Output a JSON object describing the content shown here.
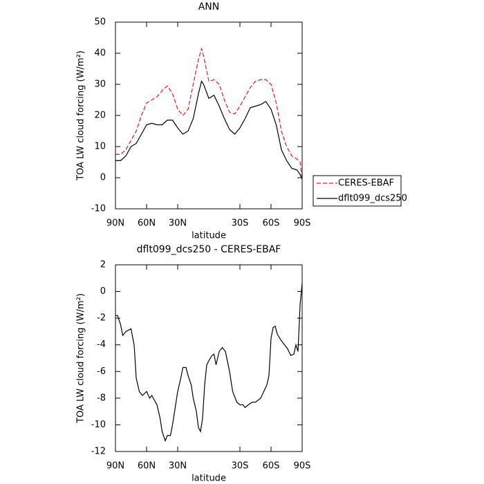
{
  "chart_data": [
    {
      "type": "line",
      "title": "ANN",
      "xlabel": "latitude",
      "ylabel": "TOA LW cloud forcing (W/m²)",
      "x": [
        90,
        85,
        80,
        75,
        70,
        65,
        60,
        55,
        50,
        45,
        40,
        35,
        30,
        25,
        20,
        15,
        10,
        7,
        5,
        0,
        -5,
        -10,
        -15,
        -20,
        -25,
        -30,
        -35,
        -40,
        -45,
        -50,
        -55,
        -60,
        -65,
        -70,
        -75,
        -80,
        -85,
        -88,
        -90
      ],
      "series": [
        {
          "name": "CERES-EBAF",
          "color": "#e41a1c",
          "style": "dashed",
          "values": [
            7.5,
            7.5,
            9,
            12,
            15,
            20,
            24,
            25,
            26,
            28,
            29.5,
            27,
            22,
            20,
            22,
            30,
            38,
            41.5,
            39,
            31,
            31.5,
            30,
            25,
            21,
            20.5,
            23,
            26,
            29,
            31,
            31.5,
            31.5,
            30,
            24,
            15,
            10,
            7,
            6,
            5,
            -0.5
          ]
        },
        {
          "name": "dflt099_dcs250",
          "color": "#000000",
          "style": "solid",
          "values": [
            5.5,
            5.5,
            7,
            10,
            11,
            14,
            17,
            17.5,
            17,
            17,
            18.5,
            18.5,
            16,
            14,
            15,
            19,
            27,
            31,
            30,
            25.5,
            26.5,
            23,
            19,
            15.5,
            14,
            16,
            19,
            22.5,
            23,
            23.5,
            24.5,
            22,
            17,
            9,
            5.5,
            3,
            2.5,
            1,
            -0.5
          ]
        }
      ],
      "xlim": [
        90,
        -90
      ],
      "xticks": [
        {
          "value": 90,
          "label": "90N"
        },
        {
          "value": 60,
          "label": "60N"
        },
        {
          "value": 30,
          "label": "30N"
        },
        {
          "value": -30,
          "label": "30S"
        },
        {
          "value": -60,
          "label": "60S"
        },
        {
          "value": -90,
          "label": "90S"
        }
      ],
      "ylim": [
        -10,
        50
      ],
      "yticks": [
        -10,
        0,
        10,
        20,
        30,
        40,
        50
      ],
      "legend": "right"
    },
    {
      "type": "line",
      "title": "dflt099_dcs250 - CERES-EBAF",
      "xlabel": "latitude",
      "ylabel": "TOA LW cloud forcing (W/m²)",
      "x": [
        90,
        88,
        85,
        83,
        80,
        75,
        72,
        70,
        67,
        64,
        60,
        57,
        55,
        50,
        47,
        45,
        42,
        40,
        37,
        35,
        30,
        27,
        25,
        22,
        20,
        17,
        15,
        12,
        10,
        8,
        6,
        4,
        2,
        0,
        -3,
        -5,
        -7,
        -10,
        -13,
        -16,
        -20,
        -23,
        -27,
        -30,
        -33,
        -35,
        -38,
        -42,
        -45,
        -50,
        -53,
        -56,
        -58,
        -60,
        -62,
        -64,
        -66,
        -70,
        -73,
        -76,
        -79,
        -82,
        -84,
        -86,
        -88,
        -90
      ],
      "series": [
        {
          "color": "#000000",
          "style": "solid",
          "values": [
            -1.8,
            -1.8,
            -2.5,
            -3.3,
            -3,
            -2.8,
            -4,
            -6.5,
            -7.5,
            -7.8,
            -7.5,
            -8,
            -7.8,
            -8.5,
            -9.5,
            -10.5,
            -11.2,
            -10.8,
            -10.8,
            -10,
            -7.5,
            -6.5,
            -5.7,
            -5.7,
            -6.3,
            -7,
            -8,
            -9,
            -10.2,
            -10.5,
            -9.5,
            -7,
            -5.5,
            -5.2,
            -4.8,
            -4.7,
            -5.5,
            -4.5,
            -4.2,
            -4.5,
            -6,
            -7.5,
            -8.3,
            -8.5,
            -8.5,
            -8.7,
            -8.5,
            -8.3,
            -8.3,
            -8,
            -7.5,
            -7,
            -6.3,
            -3.5,
            -2.7,
            -2.6,
            -3.2,
            -3.7,
            -4,
            -4.3,
            -4.8,
            -4.7,
            -4,
            -4.5,
            -1,
            0.6
          ]
        }
      ],
      "xlim": [
        90,
        -90
      ],
      "xticks": [
        {
          "value": 90,
          "label": "90N"
        },
        {
          "value": 60,
          "label": "60N"
        },
        {
          "value": 30,
          "label": "30N"
        },
        {
          "value": -30,
          "label": "30S"
        },
        {
          "value": -60,
          "label": "60S"
        },
        {
          "value": -90,
          "label": "90S"
        }
      ],
      "ylim": [
        -12,
        2
      ],
      "yticks": [
        -12,
        -10,
        -8,
        -6,
        -4,
        -2,
        0,
        2
      ]
    }
  ]
}
